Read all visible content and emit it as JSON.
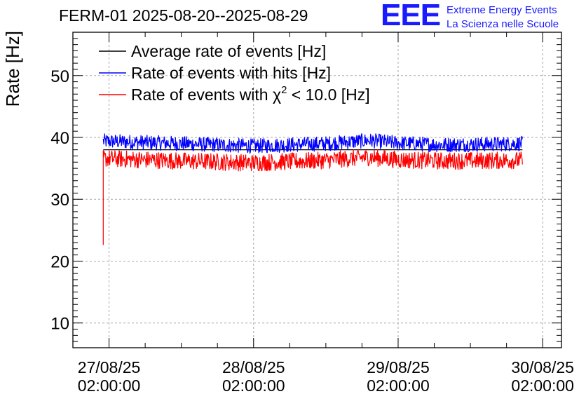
{
  "chart_data": {
    "type": "line",
    "title": "FERM-01 2025-08-20--2025-08-29",
    "ylabel": "Rate [Hz]",
    "xlabel": "",
    "ylim": [
      6,
      57
    ],
    "xlim": [
      -0.25,
      3.13
    ],
    "y_ticks": [
      10,
      20,
      30,
      40,
      50
    ],
    "x_ticks": [
      {
        "value": 0,
        "date": "27/08/25",
        "time": "02:00:00"
      },
      {
        "value": 1,
        "date": "28/08/25",
        "time": "02:00:00"
      },
      {
        "value": 2,
        "date": "29/08/25",
        "time": "02:00:00"
      },
      {
        "value": 3,
        "date": "30/08/25",
        "time": "02:00:00"
      }
    ],
    "grid": true,
    "legend_position": "top-left",
    "series": [
      {
        "name": "Average rate of events [Hz]",
        "color": "#000000",
        "x_start": -0.04,
        "x_end": 2.86,
        "y_points": [
          [
            -0.04,
            38.0
          ],
          [
            2.86,
            38.0
          ]
        ],
        "noise": 0.0
      },
      {
        "name": "Rate of events with hits [Hz]",
        "color": "#0000ff",
        "x_start": -0.04,
        "x_end": 2.86,
        "y_points": [
          [
            -0.04,
            39.4
          ],
          [
            0.5,
            39.0
          ],
          [
            1.0,
            38.6
          ],
          [
            1.5,
            39.0
          ],
          [
            1.8,
            39.5
          ],
          [
            2.0,
            39.1
          ],
          [
            2.3,
            38.8
          ],
          [
            2.86,
            39.0
          ]
        ],
        "noise": 1.2
      },
      {
        "name": "Rate of events with χ² < 10.0 [Hz]",
        "legend_main": "Rate of events with χ",
        "legend_sup": "2",
        "legend_tail": " < 10.0 [Hz]",
        "color": "#ff0000",
        "x_start": -0.04,
        "x_end": 2.86,
        "y_points": [
          [
            -0.04,
            36.6
          ],
          [
            0.5,
            36.2
          ],
          [
            1.0,
            35.9
          ],
          [
            1.5,
            36.3
          ],
          [
            1.8,
            36.8
          ],
          [
            2.0,
            36.4
          ],
          [
            2.3,
            36.2
          ],
          [
            2.86,
            36.3
          ]
        ],
        "noise": 1.4,
        "initial_spike": 22.6
      }
    ]
  },
  "logo": {
    "mark": "EEE",
    "line1": "Extreme Energy Events",
    "line2": "La Scienza nelle Scuole",
    "color": "#1a1aff"
  }
}
